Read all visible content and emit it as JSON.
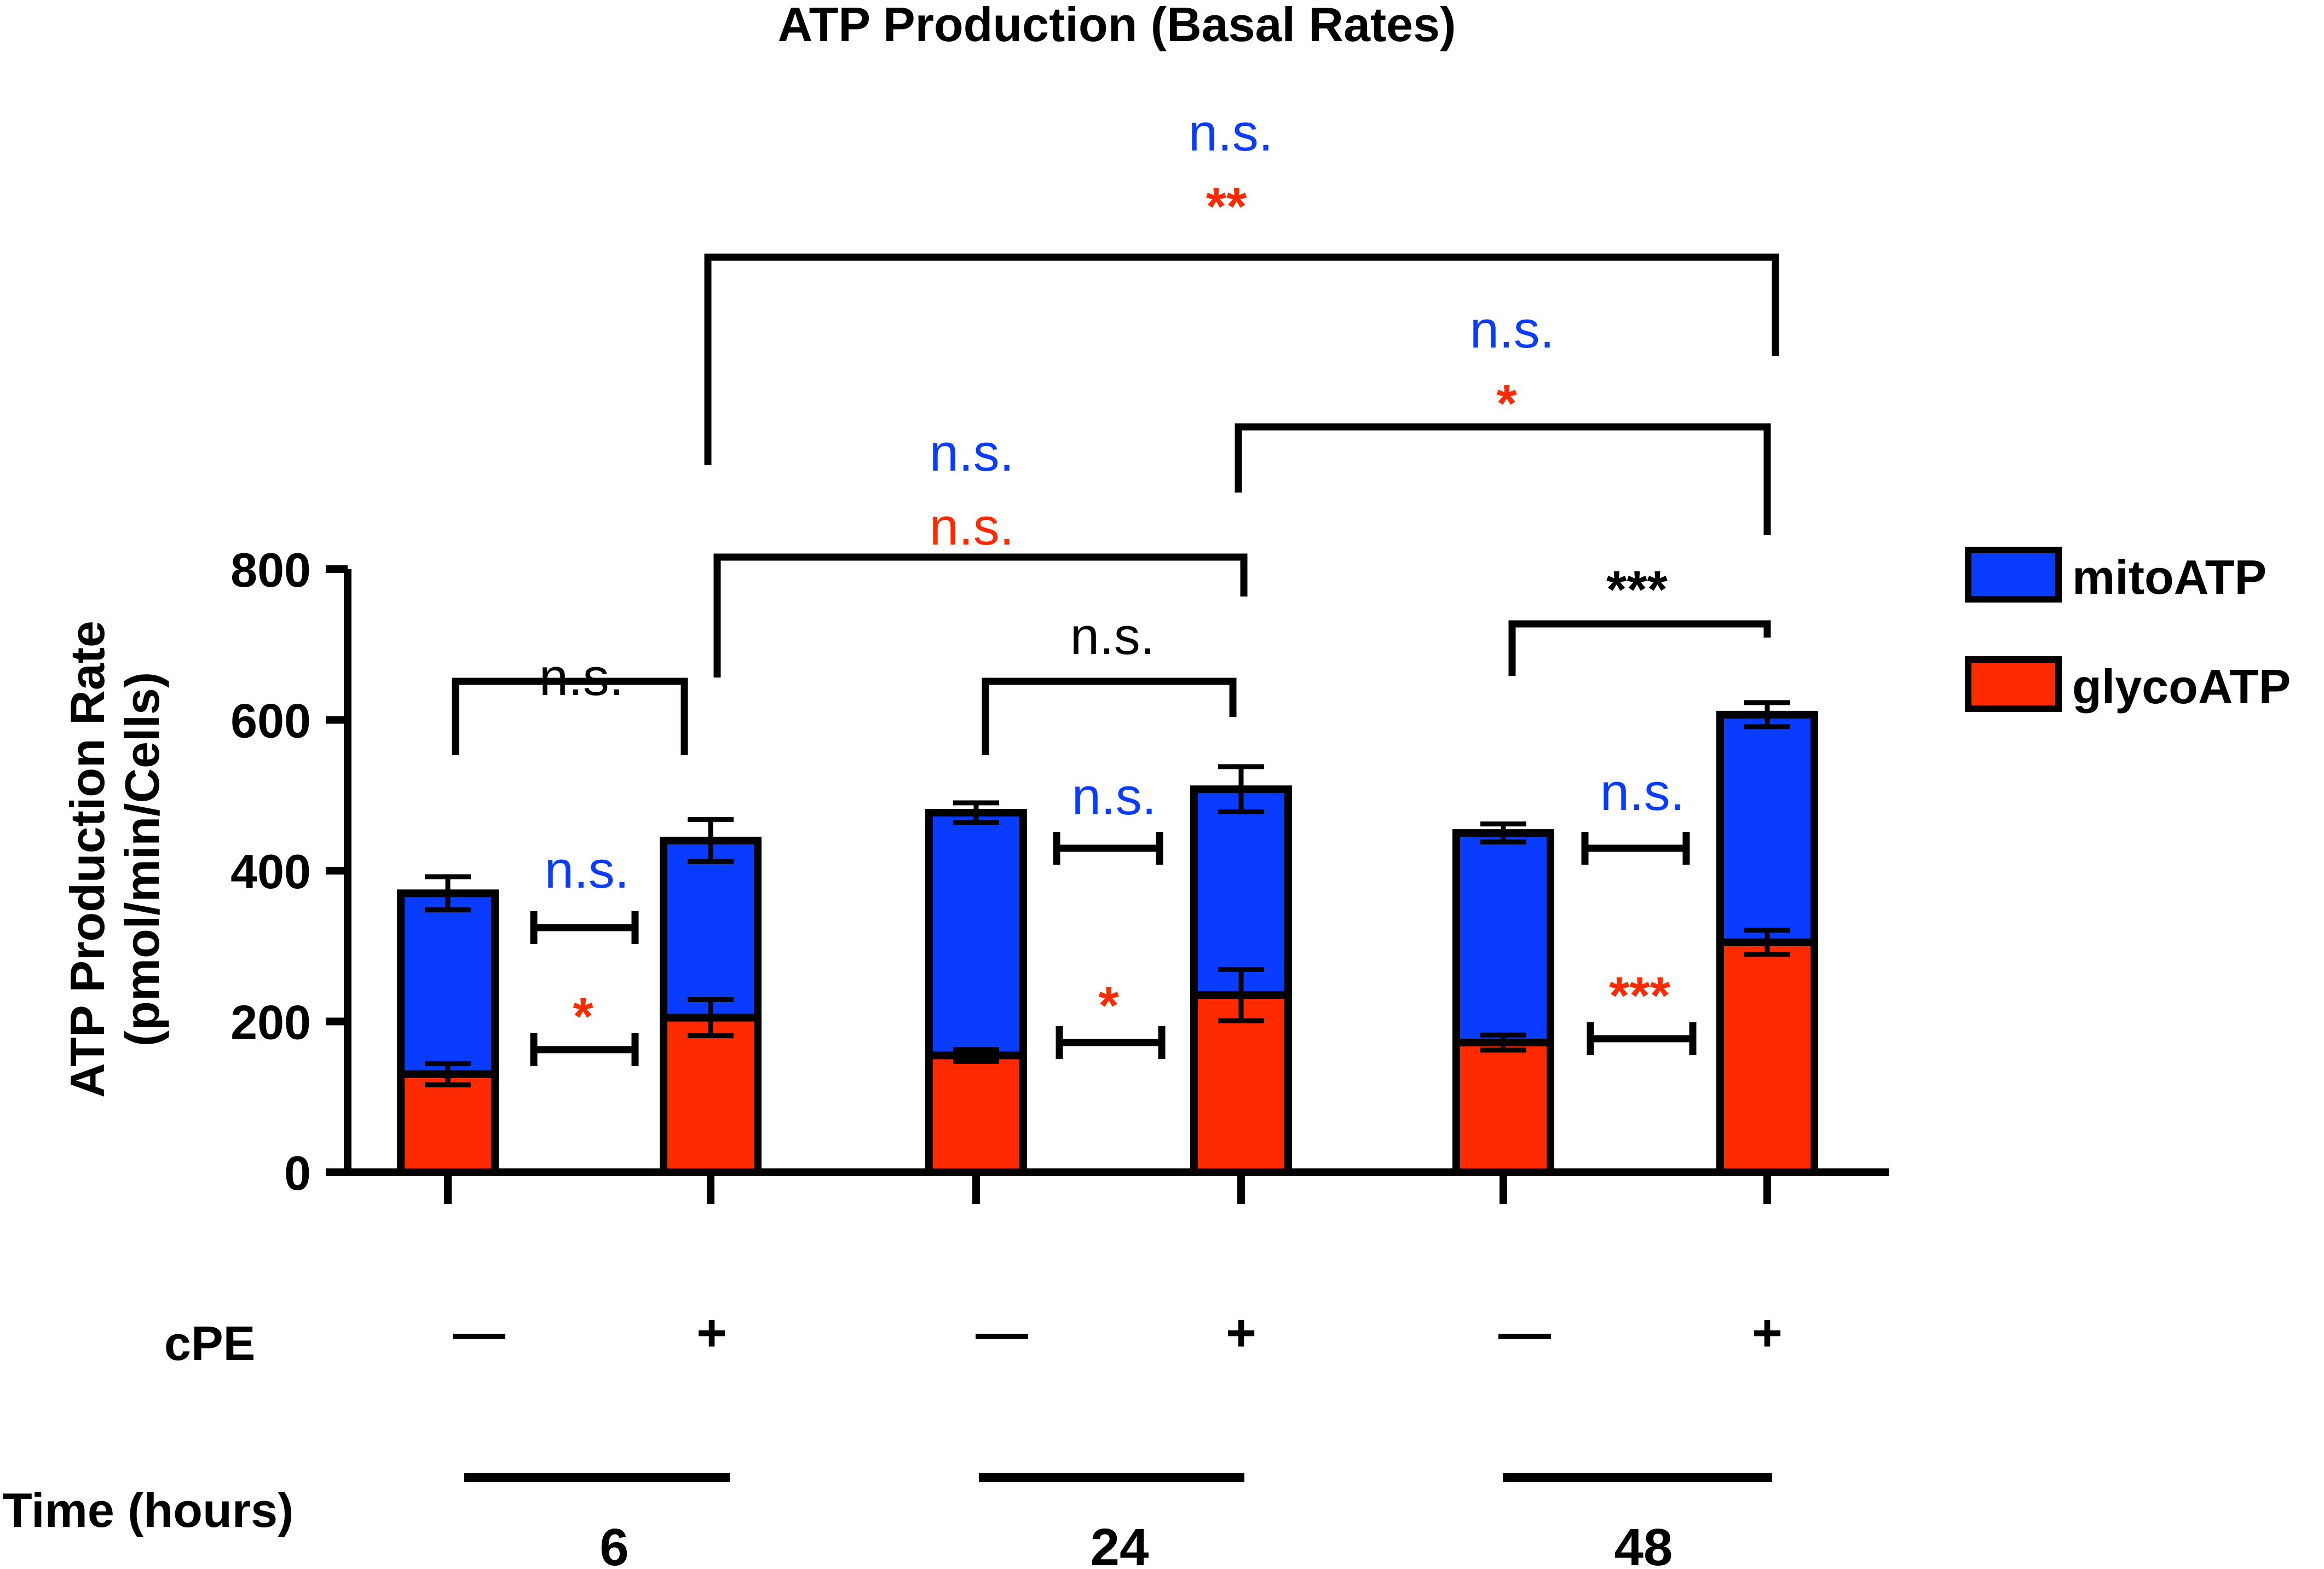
{
  "chart_data": {
    "type": "bar",
    "stacked": true,
    "title": "ATP Production (Basal Rates)",
    "ylabel_line1": "ATP Production Rate",
    "ylabel_line2": "(pmol/min/Cells)",
    "ylim": [
      0,
      800
    ],
    "yticks": [
      0,
      200,
      400,
      600,
      800
    ],
    "ytick_labels": [
      "0",
      "200",
      "400",
      "600",
      "800"
    ],
    "categories": [
      "6h -cPE",
      "6h +cPE",
      "24h -cPE",
      "24h +cPE",
      "48h -cPE",
      "48h +cPE"
    ],
    "series": [
      {
        "name": "glycoATP",
        "color": "#ff2a00",
        "values": [
          130,
          205,
          155,
          235,
          172,
          305
        ],
        "errors": [
          14,
          24,
          8,
          34,
          10,
          16
        ]
      },
      {
        "name": "mitoATP",
        "color": "#0a3cff",
        "values": [
          240,
          235,
          322,
          273,
          278,
          302
        ],
        "errors": [
          22,
          28,
          13,
          30,
          12,
          16
        ]
      }
    ],
    "legend": {
      "position": "right",
      "entries": [
        {
          "label": "mitoATP",
          "color": "#0a3cff"
        },
        {
          "label": "glycoATP",
          "color": "#ff2a00"
        }
      ]
    },
    "cpe_row_label": "cPE",
    "cpe_values": [
      "—",
      "+",
      "—",
      "+",
      "—",
      "+"
    ],
    "time_row_label": "Time (hours)",
    "time_groups": [
      "6",
      "24",
      "48"
    ],
    "annotations": {
      "pair_6h_mito": "n.s.",
      "pair_6h_glyco": "*",
      "pair_24h_mito": "n.s.",
      "pair_24h_glyco": "*",
      "pair_48h_mito": "n.s.",
      "pair_48h_glyco": "***",
      "total_6h": "n.s.",
      "total_24h": "n.s.",
      "total_48h": "***",
      "cross_6_24_mito": "n.s.",
      "cross_6_24_glyco": "n.s.",
      "cross_24_48_mito": "n.s.",
      "cross_24_48_glyco": "*",
      "cross_6_48_mito": "n.s.",
      "cross_6_48_glyco": "**"
    },
    "annotation_colors": {
      "mito": "#0a3cff",
      "glyco": "#ff2a00",
      "total": "#000000"
    }
  }
}
